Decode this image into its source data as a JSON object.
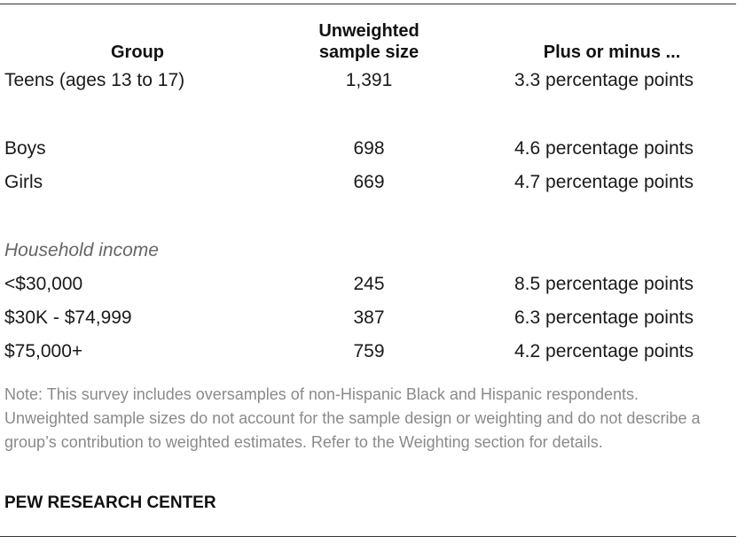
{
  "headers": {
    "group": "Group",
    "sample_line1": "Unweighted",
    "sample_line2": "sample size",
    "moe": "Plus or minus ..."
  },
  "rows": {
    "teens": {
      "label": "Teens (ages 13 to 17)",
      "count": "1,391",
      "moe": "3.3 percentage points"
    },
    "boys": {
      "label": "Boys",
      "count": "698",
      "moe": "4.6 percentage points"
    },
    "girls": {
      "label": "Girls",
      "count": "669",
      "moe": "4.7 percentage points"
    },
    "income_lt30": {
      "label": "<$30,000",
      "count": "245",
      "moe": "8.5 percentage points"
    },
    "income_30_75": {
      "label": "$30K - $74,999",
      "count": "387",
      "moe": "6.3 percentage points"
    },
    "income_75plus": {
      "label": "$75,000+",
      "count": "759",
      "moe": "4.2 percentage points"
    }
  },
  "section_income": "Household income",
  "note": "Note: This survey includes oversamples of non-Hispanic Black and Hispanic respondents. Unweighted sample sizes do not account for the sample design or weighting and do not describe a group’s contribution to weighted estimates. Refer to the Weighting section for details.",
  "source": "PEW RESEARCH CENTER"
}
